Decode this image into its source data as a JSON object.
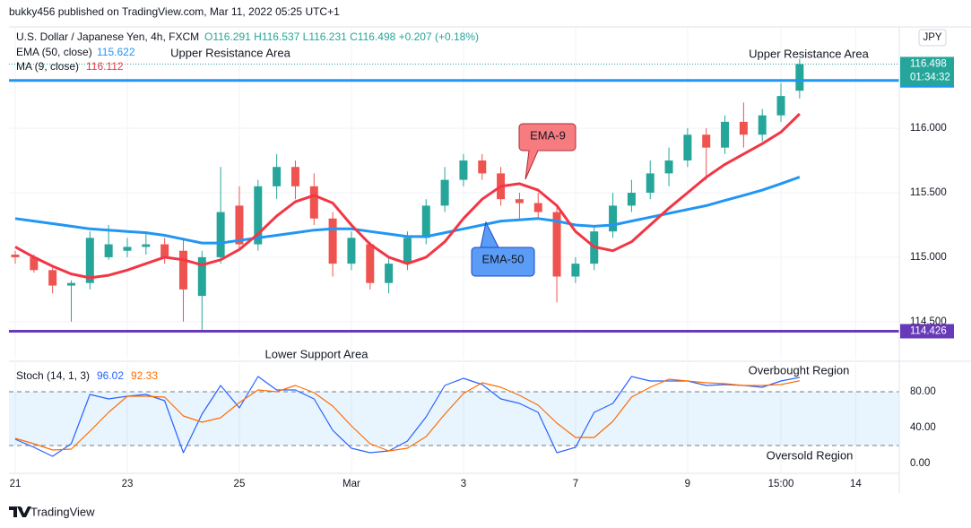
{
  "header": {
    "published": "bukky456 published on TradingView.com, Mar 11, 2022 05:25 UTC+1",
    "symbol": "U.S. Dollar / Japanese Yen, 4h, FXCM",
    "ohlc_text": "O116.291 H116.537 L116.231 C116.498 +0.207 (+0.18%)",
    "currency": "JPY"
  },
  "footer": {
    "brand": "TradingView"
  },
  "chart_data": [
    {
      "type": "candlestick",
      "categories": [
        "21",
        null,
        null,
        null,
        null,
        null,
        "23",
        null,
        null,
        null,
        null,
        null,
        "25",
        null,
        null,
        null,
        null,
        null,
        "Mar",
        null,
        null,
        null,
        null,
        null,
        "3",
        null,
        null,
        null,
        null,
        null,
        "7",
        null,
        null,
        null,
        null,
        null,
        "9",
        null,
        null,
        null,
        null,
        "15:00",
        null,
        null,
        null,
        "14",
        null
      ],
      "open": [
        115.02,
        115.0,
        114.9,
        114.78,
        114.8,
        115.0,
        115.05,
        115.08,
        115.1,
        115.05,
        114.7,
        115.0,
        115.4,
        115.1,
        115.55,
        115.7,
        115.55,
        115.3,
        114.95,
        115.1,
        114.8,
        114.95,
        115.15,
        115.4,
        115.6,
        115.75,
        115.65,
        115.45,
        115.42,
        115.35,
        114.85,
        114.95,
        115.2,
        115.4,
        115.5,
        115.65,
        115.75,
        115.95,
        115.85,
        116.05,
        115.95,
        116.1,
        116.291,
        null,
        null,
        null,
        null
      ],
      "high": [
        115.05,
        115.02,
        114.92,
        114.82,
        115.2,
        115.25,
        115.15,
        115.2,
        115.15,
        115.15,
        115.05,
        115.7,
        115.55,
        115.6,
        115.8,
        115.75,
        115.65,
        115.35,
        115.2,
        115.12,
        115.0,
        115.2,
        115.45,
        115.7,
        115.8,
        115.8,
        115.7,
        115.5,
        115.5,
        115.4,
        115.0,
        115.25,
        115.5,
        115.6,
        115.75,
        115.85,
        116.0,
        116.0,
        116.1,
        116.2,
        116.15,
        116.35,
        116.537,
        null,
        null,
        null,
        null
      ],
      "low": [
        114.95,
        114.88,
        114.72,
        114.5,
        114.75,
        114.98,
        115.0,
        115.02,
        114.95,
        114.5,
        114.42,
        114.95,
        115.05,
        115.05,
        115.45,
        115.45,
        115.25,
        114.85,
        114.9,
        114.75,
        114.72,
        114.9,
        115.1,
        115.35,
        115.55,
        115.6,
        115.4,
        115.3,
        115.3,
        114.65,
        114.8,
        114.9,
        115.15,
        115.35,
        115.45,
        115.55,
        115.7,
        115.6,
        115.8,
        115.85,
        115.9,
        116.05,
        116.231,
        null,
        null,
        null,
        null
      ],
      "close": [
        115.0,
        114.9,
        114.78,
        114.8,
        115.15,
        115.1,
        115.08,
        115.1,
        115.0,
        114.75,
        115.0,
        115.35,
        115.1,
        115.55,
        115.7,
        115.55,
        115.3,
        114.95,
        115.15,
        114.8,
        114.95,
        115.15,
        115.4,
        115.6,
        115.75,
        115.65,
        115.45,
        115.42,
        115.35,
        114.85,
        114.95,
        115.2,
        115.4,
        115.5,
        115.65,
        115.75,
        115.95,
        115.85,
        116.05,
        115.95,
        116.1,
        116.25,
        116.498,
        null,
        null,
        null,
        null
      ],
      "up_color": "#26a69a",
      "down_color": "#ef5350",
      "series": [
        {
          "name": "EMA (50, close)",
          "color": "#2196f3",
          "values": [
            115.3,
            115.28,
            115.26,
            115.24,
            115.22,
            115.21,
            115.2,
            115.19,
            115.17,
            115.14,
            115.11,
            115.11,
            115.13,
            115.15,
            115.17,
            115.19,
            115.21,
            115.22,
            115.22,
            115.2,
            115.18,
            115.16,
            115.16,
            115.19,
            115.22,
            115.25,
            115.28,
            115.29,
            115.3,
            115.28,
            115.25,
            115.24,
            115.25,
            115.28,
            115.31,
            115.34,
            115.37,
            115.4,
            115.44,
            115.48,
            115.52,
            115.57,
            115.622,
            null,
            null,
            null,
            null
          ]
        },
        {
          "name": "MA (9, close)",
          "color": "#f23645",
          "values": [
            115.08,
            115.0,
            114.93,
            114.87,
            114.84,
            114.86,
            114.9,
            114.95,
            115.0,
            114.98,
            114.94,
            114.98,
            115.06,
            115.18,
            115.32,
            115.43,
            115.48,
            115.42,
            115.25,
            115.1,
            115.0,
            114.95,
            115.0,
            115.12,
            115.3,
            115.45,
            115.55,
            115.57,
            115.52,
            115.4,
            115.2,
            115.08,
            115.05,
            115.12,
            115.25,
            115.38,
            115.5,
            115.62,
            115.72,
            115.8,
            115.88,
            115.97,
            116.112,
            null,
            null,
            null,
            null
          ]
        }
      ],
      "ylim": [
        114.2,
        116.8
      ],
      "yticks": [
        {
          "value": 114.5,
          "label": "114.500"
        },
        {
          "value": 115,
          "label": "115.000"
        },
        {
          "value": 115.5,
          "label": "115.500"
        },
        {
          "value": 116,
          "label": "116.000"
        }
      ],
      "grid": true,
      "levels": [
        {
          "value": 116.371,
          "color": "#2196f3"
        },
        {
          "value": 114.426,
          "color": "#673ab7"
        }
      ],
      "countdown": "01:34:32",
      "annotations": [
        "Upper Resistance Area",
        "Upper Resistance Area",
        "Lower Support Area",
        "EMA-9",
        "EMA-50"
      ]
    },
    {
      "type": "line",
      "title": "Stoch (14, 1, 3)",
      "series": [
        {
          "color": "#2962ff",
          "values": [
            27,
            18,
            8,
            22,
            77,
            72,
            75,
            77,
            70,
            12,
            55,
            87,
            62,
            97,
            82,
            82,
            72,
            37,
            17,
            12,
            14,
            25,
            52,
            87,
            95,
            88,
            72,
            67,
            57,
            12,
            18,
            57,
            67,
            97,
            92,
            92,
            92,
            87,
            88,
            87,
            85,
            92,
            96.02,
            null,
            null,
            null,
            null
          ]
        },
        {
          "color": "#ff6d00",
          "values": [
            28,
            22,
            15,
            16,
            36,
            57,
            75,
            75,
            74,
            53,
            46,
            51,
            68,
            82,
            80,
            87,
            79,
            64,
            42,
            22,
            14,
            17,
            30,
            55,
            78,
            90,
            85,
            76,
            65,
            45,
            29,
            29,
            47,
            74,
            85,
            94,
            92,
            90,
            89,
            87,
            87,
            88,
            92.33,
            null,
            null,
            null,
            null
          ]
        }
      ],
      "ylim": [
        -10,
        110
      ],
      "yticks": [
        {
          "value": 0,
          "label": "0.00"
        },
        {
          "value": 40,
          "label": "40.00"
        },
        {
          "value": 80,
          "label": "80.00"
        }
      ],
      "bands": [
        20,
        80
      ],
      "annotations": [
        "Overbought Region",
        "Oversold Region"
      ]
    }
  ]
}
